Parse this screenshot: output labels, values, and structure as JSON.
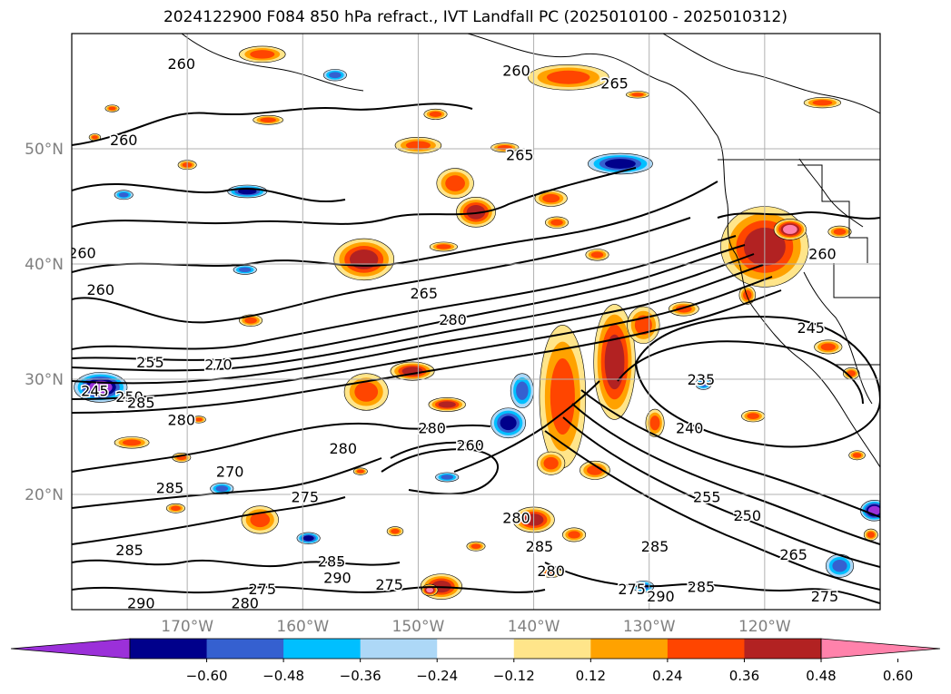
{
  "chart_data": {
    "type": "heatmap",
    "title": "2024122900 F084 850 hPa refract., IVT Landfall PC (2025010100 - 2025010312)",
    "map": {
      "lon_range": [
        -180,
        -110
      ],
      "lat_range": [
        10,
        60
      ],
      "lon_ticks": [
        {
          "value": -170,
          "label": "170°W"
        },
        {
          "value": -160,
          "label": "160°W"
        },
        {
          "value": -150,
          "label": "150°W"
        },
        {
          "value": -140,
          "label": "140°W"
        },
        {
          "value": -130,
          "label": "130°W"
        },
        {
          "value": -120,
          "label": "120°W"
        }
      ],
      "lat_ticks": [
        {
          "value": 20,
          "label": "20°N"
        },
        {
          "value": 30,
          "label": "30°N"
        },
        {
          "value": 40,
          "label": "40°N"
        },
        {
          "value": 50,
          "label": "50°N"
        }
      ],
      "grid": true,
      "tick_label_color": "#808080"
    },
    "contour_labels": [
      {
        "text": "260",
        "lon": -170.5,
        "lat": 57.4
      },
      {
        "text": "260",
        "lon": -141.5,
        "lat": 56.8
      },
      {
        "text": "265",
        "lon": -133.0,
        "lat": 55.7
      },
      {
        "text": "260",
        "lon": -175.5,
        "lat": 50.8
      },
      {
        "text": "265",
        "lon": -141.2,
        "lat": 49.5
      },
      {
        "text": "260",
        "lon": -179.1,
        "lat": 41.0
      },
      {
        "text": "260",
        "lon": -177.5,
        "lat": 37.8
      },
      {
        "text": "265",
        "lon": -149.5,
        "lat": 37.5
      },
      {
        "text": "280",
        "lon": -147.0,
        "lat": 35.2
      },
      {
        "text": "255",
        "lon": -173.2,
        "lat": 31.5
      },
      {
        "text": "270",
        "lon": -167.3,
        "lat": 31.3
      },
      {
        "text": "245",
        "lon": -178.0,
        "lat": 29.0
      },
      {
        "text": "250",
        "lon": -175.0,
        "lat": 28.5
      },
      {
        "text": "285",
        "lon": -174.0,
        "lat": 28.0
      },
      {
        "text": "280",
        "lon": -170.5,
        "lat": 26.5
      },
      {
        "text": "280",
        "lon": -148.8,
        "lat": 25.8
      },
      {
        "text": "260",
        "lon": -145.5,
        "lat": 24.3
      },
      {
        "text": "280",
        "lon": -156.5,
        "lat": 24.0
      },
      {
        "text": "270",
        "lon": -166.3,
        "lat": 22.0
      },
      {
        "text": "285",
        "lon": -171.5,
        "lat": 20.6
      },
      {
        "text": "275",
        "lon": -159.8,
        "lat": 19.8
      },
      {
        "text": "235",
        "lon": -125.5,
        "lat": 30.0
      },
      {
        "text": "240",
        "lon": -126.5,
        "lat": 25.8
      },
      {
        "text": "280",
        "lon": -141.5,
        "lat": 18.0
      },
      {
        "text": "285",
        "lon": -139.5,
        "lat": 15.5
      },
      {
        "text": "285",
        "lon": -129.5,
        "lat": 15.5
      },
      {
        "text": "255",
        "lon": -125.0,
        "lat": 19.8
      },
      {
        "text": "250",
        "lon": -121.5,
        "lat": 18.2
      },
      {
        "text": "285",
        "lon": -175.0,
        "lat": 15.2
      },
      {
        "text": "285",
        "lon": -157.5,
        "lat": 14.2
      },
      {
        "text": "290",
        "lon": -157.0,
        "lat": 12.8
      },
      {
        "text": "275",
        "lon": -163.5,
        "lat": 11.8
      },
      {
        "text": "275",
        "lon": -152.5,
        "lat": 12.2
      },
      {
        "text": "280",
        "lon": -138.5,
        "lat": 13.4
      },
      {
        "text": "275",
        "lon": -131.5,
        "lat": 11.8
      },
      {
        "text": "290",
        "lon": -129.0,
        "lat": 11.2
      },
      {
        "text": "285",
        "lon": -125.5,
        "lat": 12.0
      },
      {
        "text": "265",
        "lon": -117.5,
        "lat": 14.8
      },
      {
        "text": "275",
        "lon": -114.8,
        "lat": 11.2
      },
      {
        "text": "290",
        "lon": -174.0,
        "lat": 10.6
      },
      {
        "text": "280",
        "lon": -165.0,
        "lat": 10.6
      },
      {
        "text": "260",
        "lon": -115.0,
        "lat": 40.9
      },
      {
        "text": "245",
        "lon": -116.0,
        "lat": 34.5
      }
    ],
    "shaded_regions": [
      {
        "lon": -163.5,
        "lat": 58.2,
        "rx": 2.0,
        "ry": 0.7,
        "value": 0.4
      },
      {
        "lon": -137.0,
        "lat": 56.2,
        "rx": 3.5,
        "ry": 1.1,
        "value": 0.4
      },
      {
        "lon": -163.0,
        "lat": 52.5,
        "rx": 1.3,
        "ry": 0.4,
        "value": 0.36
      },
      {
        "lon": -131.0,
        "lat": 54.7,
        "rx": 1.0,
        "ry": 0.3,
        "value": 0.4
      },
      {
        "lon": -115.0,
        "lat": 54.0,
        "rx": 1.6,
        "ry": 0.45,
        "value": 0.4
      },
      {
        "lon": -157.2,
        "lat": 56.4,
        "rx": 1.0,
        "ry": 0.5,
        "value": -0.4
      },
      {
        "lon": -148.5,
        "lat": 53.0,
        "rx": 1.0,
        "ry": 0.45,
        "value": 0.36
      },
      {
        "lon": -150.0,
        "lat": 50.3,
        "rx": 2.0,
        "ry": 0.7,
        "value": 0.4
      },
      {
        "lon": -142.5,
        "lat": 50.1,
        "rx": 1.2,
        "ry": 0.4,
        "value": 0.36
      },
      {
        "lon": -132.5,
        "lat": 48.7,
        "rx": 2.8,
        "ry": 0.9,
        "value": -0.55
      },
      {
        "lon": -170.0,
        "lat": 48.6,
        "rx": 0.8,
        "ry": 0.4,
        "value": 0.4
      },
      {
        "lon": -146.8,
        "lat": 47.0,
        "rx": 1.6,
        "ry": 1.3,
        "value": 0.4
      },
      {
        "lon": -138.5,
        "lat": 45.7,
        "rx": 1.4,
        "ry": 0.7,
        "value": 0.4
      },
      {
        "lon": -145.0,
        "lat": 44.5,
        "rx": 1.7,
        "ry": 1.3,
        "value": 0.5
      },
      {
        "lon": -164.8,
        "lat": 46.3,
        "rx": 1.7,
        "ry": 0.55,
        "value": -0.5
      },
      {
        "lon": -175.5,
        "lat": 46.0,
        "rx": 0.8,
        "ry": 0.4,
        "value": -0.4
      },
      {
        "lon": -138.0,
        "lat": 43.6,
        "rx": 1.0,
        "ry": 0.5,
        "value": 0.4
      },
      {
        "lon": -154.7,
        "lat": 40.4,
        "rx": 2.6,
        "ry": 1.8,
        "value": 0.5
      },
      {
        "lon": -147.8,
        "lat": 41.5,
        "rx": 1.2,
        "ry": 0.4,
        "value": 0.36
      },
      {
        "lon": -134.5,
        "lat": 40.8,
        "rx": 1.0,
        "ry": 0.5,
        "value": 0.4
      },
      {
        "lon": -120.0,
        "lat": 41.5,
        "rx": 3.8,
        "ry": 3.5,
        "value": 0.5
      },
      {
        "lon": -117.8,
        "lat": 43.0,
        "rx": 1.4,
        "ry": 0.9,
        "value": 0.65
      },
      {
        "lon": -113.5,
        "lat": 42.8,
        "rx": 1.0,
        "ry": 0.5,
        "value": 0.4
      },
      {
        "lon": -121.5,
        "lat": 37.3,
        "rx": 0.7,
        "ry": 0.8,
        "value": 0.4
      },
      {
        "lon": -165.0,
        "lat": 39.5,
        "rx": 1.0,
        "ry": 0.4,
        "value": -0.4
      },
      {
        "lon": -164.5,
        "lat": 35.1,
        "rx": 1.0,
        "ry": 0.5,
        "value": 0.4
      },
      {
        "lon": -154.5,
        "lat": 28.9,
        "rx": 1.9,
        "ry": 1.6,
        "value": 0.45
      },
      {
        "lon": -150.5,
        "lat": 30.7,
        "rx": 1.9,
        "ry": 0.8,
        "value": 0.5
      },
      {
        "lon": -147.5,
        "lat": 27.8,
        "rx": 1.6,
        "ry": 0.6,
        "value": 0.5
      },
      {
        "lon": -177.5,
        "lat": 29.3,
        "rx": 2.3,
        "ry": 1.3,
        "value": -0.6
      },
      {
        "lon": -141.0,
        "lat": 29.0,
        "rx": 1.0,
        "ry": 1.5,
        "value": -0.4
      },
      {
        "lon": -142.2,
        "lat": 26.2,
        "rx": 1.5,
        "ry": 1.3,
        "value": -0.55
      },
      {
        "lon": -137.5,
        "lat": 28.5,
        "rx": 2.0,
        "ry": 6.2,
        "value": 0.45
      },
      {
        "lon": -133.0,
        "lat": 31.5,
        "rx": 1.8,
        "ry": 5.0,
        "value": 0.5
      },
      {
        "lon": -130.5,
        "lat": 34.7,
        "rx": 1.4,
        "ry": 1.6,
        "value": 0.4
      },
      {
        "lon": -127.0,
        "lat": 36.1,
        "rx": 1.3,
        "ry": 0.6,
        "value": 0.4
      },
      {
        "lon": -129.5,
        "lat": 26.2,
        "rx": 0.8,
        "ry": 1.2,
        "value": 0.4
      },
      {
        "lon": -134.7,
        "lat": 22.1,
        "rx": 1.3,
        "ry": 0.8,
        "value": 0.45
      },
      {
        "lon": -138.5,
        "lat": 22.7,
        "rx": 1.2,
        "ry": 1.0,
        "value": 0.4
      },
      {
        "lon": -125.3,
        "lat": 29.6,
        "rx": 0.7,
        "ry": 0.5,
        "value": -0.4
      },
      {
        "lon": -121.0,
        "lat": 26.8,
        "rx": 1.0,
        "ry": 0.5,
        "value": 0.4
      },
      {
        "lon": -112.0,
        "lat": 23.4,
        "rx": 0.7,
        "ry": 0.4,
        "value": 0.4
      },
      {
        "lon": -112.5,
        "lat": 30.5,
        "rx": 0.7,
        "ry": 0.5,
        "value": 0.4
      },
      {
        "lon": -114.5,
        "lat": 32.8,
        "rx": 1.2,
        "ry": 0.6,
        "value": 0.4
      },
      {
        "lon": -174.8,
        "lat": 24.5,
        "rx": 1.5,
        "ry": 0.5,
        "value": 0.4
      },
      {
        "lon": -170.5,
        "lat": 23.2,
        "rx": 0.8,
        "ry": 0.4,
        "value": 0.36
      },
      {
        "lon": -167.0,
        "lat": 20.5,
        "rx": 1.0,
        "ry": 0.5,
        "value": -0.4
      },
      {
        "lon": -147.5,
        "lat": 21.5,
        "rx": 1.0,
        "ry": 0.4,
        "value": -0.4
      },
      {
        "lon": -171.0,
        "lat": 18.8,
        "rx": 0.8,
        "ry": 0.4,
        "value": 0.4
      },
      {
        "lon": -163.7,
        "lat": 17.8,
        "rx": 1.6,
        "ry": 1.2,
        "value": 0.45
      },
      {
        "lon": -159.5,
        "lat": 16.2,
        "rx": 1.0,
        "ry": 0.5,
        "value": -0.55
      },
      {
        "lon": -140.0,
        "lat": 17.8,
        "rx": 1.8,
        "ry": 1.1,
        "value": 0.55
      },
      {
        "lon": -136.5,
        "lat": 16.5,
        "rx": 1.0,
        "ry": 0.6,
        "value": 0.4
      },
      {
        "lon": -152.0,
        "lat": 16.8,
        "rx": 0.7,
        "ry": 0.4,
        "value": 0.4
      },
      {
        "lon": -145.0,
        "lat": 15.5,
        "rx": 0.8,
        "ry": 0.4,
        "value": 0.4
      },
      {
        "lon": -138.5,
        "lat": 13.2,
        "rx": 1.0,
        "ry": 0.4,
        "value": 0.36
      },
      {
        "lon": -148.0,
        "lat": 12.0,
        "rx": 1.8,
        "ry": 1.1,
        "value": 0.5
      },
      {
        "lon": -149.0,
        "lat": 11.7,
        "rx": 0.7,
        "ry": 0.5,
        "value": 0.65
      },
      {
        "lon": -130.5,
        "lat": 12.0,
        "rx": 0.9,
        "ry": 0.5,
        "value": -0.4
      },
      {
        "lon": -113.5,
        "lat": 13.8,
        "rx": 1.2,
        "ry": 1.0,
        "value": -0.45
      },
      {
        "lon": -110.5,
        "lat": 18.6,
        "rx": 1.2,
        "ry": 0.9,
        "value": -0.6
      },
      {
        "lon": -110.8,
        "lat": 16.5,
        "rx": 0.6,
        "ry": 0.5,
        "value": 0.36
      },
      {
        "lon": -176.5,
        "lat": 53.5,
        "rx": 0.6,
        "ry": 0.3,
        "value": 0.4
      },
      {
        "lon": -178.0,
        "lat": 51.0,
        "rx": 0.5,
        "ry": 0.3,
        "value": 0.36
      },
      {
        "lon": -169.0,
        "lat": 26.5,
        "rx": 0.6,
        "ry": 0.3,
        "value": 0.36
      },
      {
        "lon": -155.0,
        "lat": 22.0,
        "rx": 0.6,
        "ry": 0.3,
        "value": 0.36
      }
    ],
    "colorbar": {
      "orientation": "horizontal",
      "extend": "both",
      "boundaries": [
        -0.72,
        -0.6,
        -0.48,
        -0.36,
        -0.24,
        -0.12,
        0.12,
        0.24,
        0.36,
        0.48,
        0.6,
        0.72
      ],
      "colors": [
        "#9b30d9",
        "#00008b",
        "#3560d0",
        "#00bfff",
        "#add8f7",
        "#ffffff",
        "#ffe58a",
        "#ffa200",
        "#ff4500",
        "#b22222",
        "#ff82ab"
      ],
      "tick_values": [
        -0.6,
        -0.48,
        -0.36,
        -0.24,
        -0.12,
        0.12,
        0.24,
        0.36,
        0.48,
        0.6
      ],
      "tick_labels": [
        "−0.60",
        "−0.48",
        "−0.36",
        "−0.24",
        "−0.12",
        "0.12",
        "0.24",
        "0.36",
        "0.48",
        "0.60"
      ]
    }
  }
}
